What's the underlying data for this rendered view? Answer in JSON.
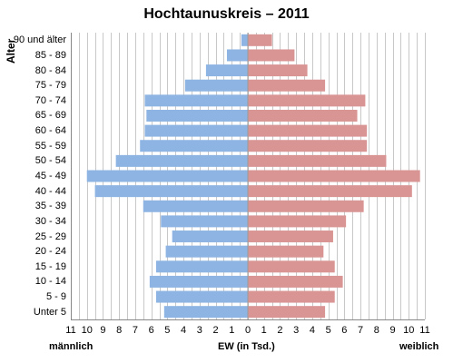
{
  "chart_data": {
    "type": "bar",
    "title": "Hochtaunuskreis – 2011",
    "ylabel": "Alter",
    "xlabel": "EW (in Tsd.)",
    "left_label": "männlich",
    "right_label": "weiblich",
    "categories": [
      "90 und älter",
      "85 - 89",
      "80 - 84",
      "75 - 79",
      "70 - 74",
      "65 - 69",
      "60 - 64",
      "55 - 59",
      "50 - 54",
      "45 - 49",
      "40 - 44",
      "35 - 39",
      "30 - 34",
      "25 - 29",
      "20 - 24",
      "15 - 19",
      "10 - 14",
      "5 - 9",
      "Unter 5"
    ],
    "x_ticks": [
      "11",
      "10",
      "9",
      "8",
      "7",
      "6",
      "5",
      "4",
      "3",
      "2",
      "1",
      "0",
      "1",
      "2",
      "3",
      "4",
      "5",
      "6",
      "7",
      "8",
      "9",
      "10",
      "11"
    ],
    "xlim": [
      -11,
      11
    ],
    "series": [
      {
        "name": "männlich",
        "color": "#8db4e2",
        "values": [
          0.4,
          1.3,
          2.6,
          3.9,
          6.4,
          6.3,
          6.4,
          6.7,
          8.2,
          10.0,
          9.5,
          6.5,
          5.4,
          4.7,
          5.1,
          5.7,
          6.1,
          5.7,
          5.2
        ]
      },
      {
        "name": "weiblich",
        "color": "#d99594",
        "values": [
          1.5,
          2.9,
          3.7,
          4.8,
          7.3,
          6.8,
          7.4,
          7.4,
          8.6,
          10.7,
          10.2,
          7.2,
          6.1,
          5.3,
          4.7,
          5.4,
          5.9,
          5.4,
          4.8
        ]
      }
    ],
    "grid": true
  }
}
